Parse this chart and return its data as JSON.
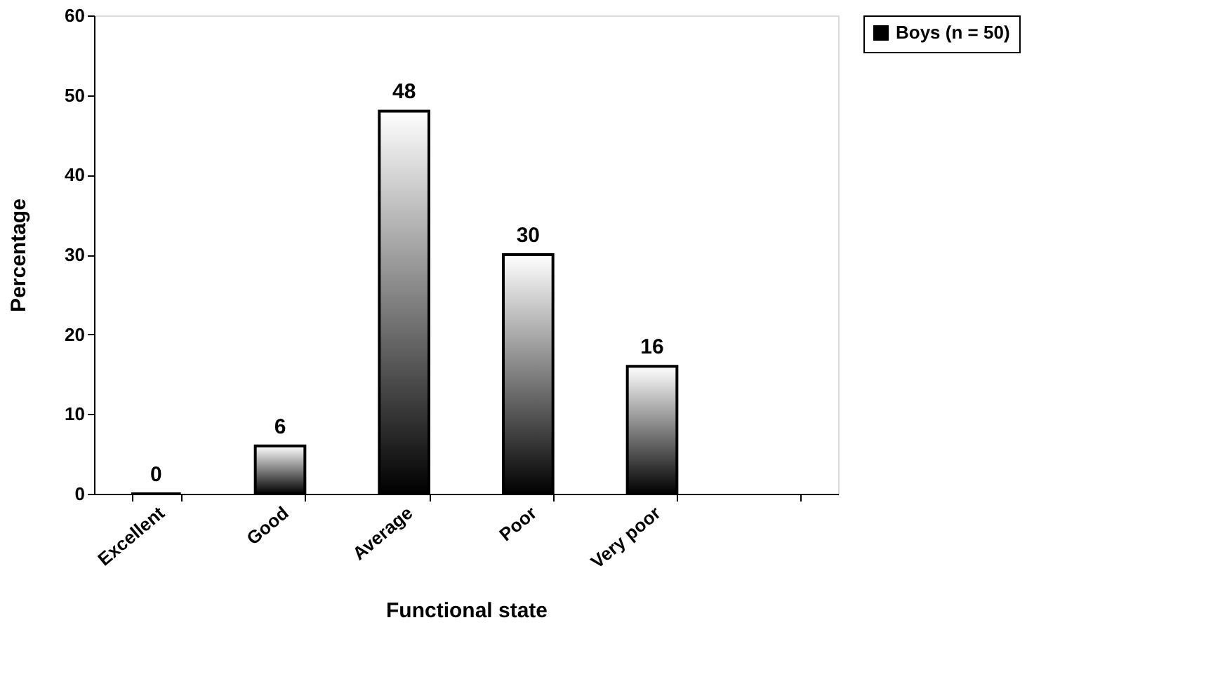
{
  "chart_data": {
    "type": "bar",
    "xlabel": "Functional state",
    "ylabel": "Percentage",
    "categories": [
      "Excellent",
      "Good",
      "Average",
      "Poor",
      "Very poor",
      null
    ],
    "series": [
      {
        "name": "Boys (n = 50)",
        "color": "#000000",
        "values": [
          0,
          6,
          48,
          30,
          16,
          null
        ]
      }
    ],
    "ylim": [
      0,
      60
    ],
    "yticks": [
      0,
      10,
      20,
      30,
      40,
      50,
      60
    ],
    "data_labels": true,
    "grid": false,
    "legend": "right"
  }
}
